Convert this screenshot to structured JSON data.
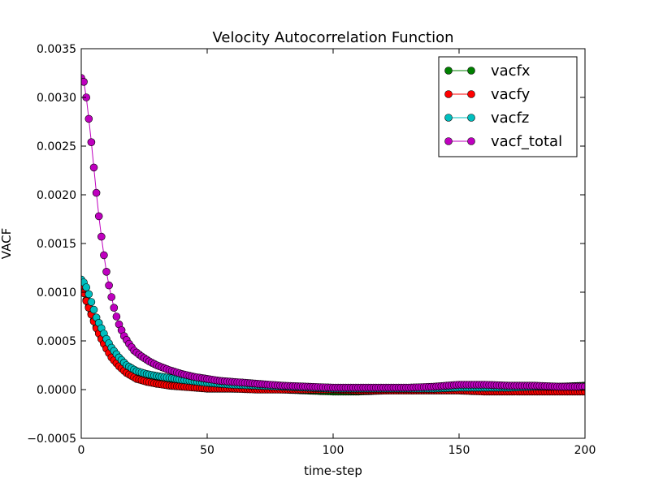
{
  "chart_data": {
    "type": "line",
    "title": "Velocity Autocorrelation Function",
    "xlabel": "time-step",
    "ylabel": "VACF",
    "xlim": [
      0,
      200
    ],
    "ylim": [
      -0.0005,
      0.0035
    ],
    "x_ticks": [
      "0",
      "50",
      "100",
      "150",
      "200"
    ],
    "y_ticks": [
      "−0.0005",
      "0.0000",
      "0.0005",
      "0.0010",
      "0.0015",
      "0.0020",
      "0.0025",
      "0.0030",
      "0.0035"
    ],
    "grid": false,
    "legend_position": "top-right",
    "marker": "circle",
    "series": [
      {
        "name": "vacfx",
        "color": "#008000",
        "points": [
          [
            0,
            0.00108
          ],
          [
            1,
            0.001
          ],
          [
            2,
            0.00092
          ],
          [
            3,
            0.00085
          ],
          [
            4,
            0.00078
          ],
          [
            5,
            0.00071
          ],
          [
            6,
            0.00064
          ],
          [
            8,
            0.00053
          ],
          [
            10,
            0.00043
          ],
          [
            12,
            0.00035
          ],
          [
            15,
            0.00026
          ],
          [
            18,
            0.00019
          ],
          [
            22,
            0.00013
          ],
          [
            26,
            9e-05
          ],
          [
            30,
            7e-05
          ],
          [
            35,
            5e-05
          ],
          [
            40,
            4e-05
          ],
          [
            50,
            2e-05
          ],
          [
            60,
            1e-05
          ],
          [
            70,
            1e-05
          ],
          [
            80,
            0.0
          ],
          [
            90,
            -1e-05
          ],
          [
            100,
            -2e-05
          ],
          [
            110,
            -2e-05
          ],
          [
            120,
            -1e-05
          ],
          [
            130,
            0.0
          ],
          [
            140,
            0.0
          ],
          [
            150,
            1e-05
          ],
          [
            160,
            1e-05
          ],
          [
            170,
            2e-05
          ],
          [
            180,
            2e-05
          ],
          [
            190,
            3e-05
          ],
          [
            200,
            4e-05
          ]
        ]
      },
      {
        "name": "vacfy",
        "color": "#ff0000",
        "points": [
          [
            0,
            0.00107
          ],
          [
            1,
            0.00099
          ],
          [
            2,
            0.00091
          ],
          [
            3,
            0.00084
          ],
          [
            4,
            0.00077
          ],
          [
            5,
            0.0007
          ],
          [
            6,
            0.00063
          ],
          [
            8,
            0.00052
          ],
          [
            10,
            0.00042
          ],
          [
            12,
            0.00033
          ],
          [
            15,
            0.00024
          ],
          [
            18,
            0.00017
          ],
          [
            22,
            0.00011
          ],
          [
            26,
            8e-05
          ],
          [
            30,
            6e-05
          ],
          [
            35,
            4e-05
          ],
          [
            40,
            3e-05
          ],
          [
            50,
            1e-05
          ],
          [
            60,
            1e-05
          ],
          [
            70,
            0.0
          ],
          [
            80,
            0.0
          ],
          [
            90,
            0.0
          ],
          [
            100,
            0.0
          ],
          [
            110,
            -1e-05
          ],
          [
            120,
            -1e-05
          ],
          [
            130,
            -1e-05
          ],
          [
            140,
            -1e-05
          ],
          [
            150,
            -1e-05
          ],
          [
            160,
            -2e-05
          ],
          [
            170,
            -2e-05
          ],
          [
            180,
            -2e-05
          ],
          [
            190,
            -2e-05
          ],
          [
            200,
            -2e-05
          ]
        ]
      },
      {
        "name": "vacfz",
        "color": "#00bfbf",
        "points": [
          [
            0,
            0.00113
          ],
          [
            1,
            0.0011
          ],
          [
            2,
            0.00105
          ],
          [
            3,
            0.00098
          ],
          [
            4,
            0.0009
          ],
          [
            5,
            0.00082
          ],
          [
            6,
            0.00074
          ],
          [
            8,
            0.00063
          ],
          [
            10,
            0.00052
          ],
          [
            12,
            0.00043
          ],
          [
            15,
            0.00033
          ],
          [
            18,
            0.00025
          ],
          [
            22,
            0.00019
          ],
          [
            26,
            0.00016
          ],
          [
            30,
            0.00014
          ],
          [
            35,
            0.00012
          ],
          [
            40,
            0.0001
          ],
          [
            50,
            7e-05
          ],
          [
            60,
            5e-05
          ],
          [
            70,
            4e-05
          ],
          [
            80,
            3e-05
          ],
          [
            90,
            2e-05
          ],
          [
            100,
            1e-05
          ],
          [
            110,
            1e-05
          ],
          [
            120,
            1e-05
          ],
          [
            130,
            1e-05
          ],
          [
            140,
            1e-05
          ],
          [
            150,
            2e-05
          ],
          [
            160,
            2e-05
          ],
          [
            170,
            2e-05
          ],
          [
            180,
            3e-05
          ],
          [
            190,
            3e-05
          ],
          [
            200,
            3e-05
          ]
        ]
      },
      {
        "name": "vacf_total",
        "color": "#bf00bf",
        "points": [
          [
            0,
            0.0032
          ],
          [
            1,
            0.00316
          ],
          [
            2,
            0.003
          ],
          [
            3,
            0.00278
          ],
          [
            4,
            0.00254
          ],
          [
            5,
            0.00228
          ],
          [
            6,
            0.00202
          ],
          [
            7,
            0.00178
          ],
          [
            8,
            0.00157
          ],
          [
            9,
            0.00138
          ],
          [
            10,
            0.00121
          ],
          [
            11,
            0.00107
          ],
          [
            12,
            0.00095
          ],
          [
            13,
            0.00084
          ],
          [
            14,
            0.00075
          ],
          [
            15,
            0.00067
          ],
          [
            17,
            0.00055
          ],
          [
            19,
            0.00047
          ],
          [
            21,
            0.0004
          ],
          [
            24,
            0.00034
          ],
          [
            27,
            0.00029
          ],
          [
            30,
            0.00025
          ],
          [
            35,
            0.0002
          ],
          [
            40,
            0.00016
          ],
          [
            45,
            0.00013
          ],
          [
            50,
            0.00011
          ],
          [
            55,
            9e-05
          ],
          [
            60,
            8e-05
          ],
          [
            70,
            6e-05
          ],
          [
            80,
            4e-05
          ],
          [
            90,
            3e-05
          ],
          [
            100,
            2e-05
          ],
          [
            110,
            2e-05
          ],
          [
            120,
            2e-05
          ],
          [
            130,
            2e-05
          ],
          [
            140,
            3e-05
          ],
          [
            150,
            5e-05
          ],
          [
            160,
            5e-05
          ],
          [
            170,
            4e-05
          ],
          [
            180,
            4e-05
          ],
          [
            190,
            3e-05
          ],
          [
            200,
            3e-05
          ]
        ]
      }
    ]
  }
}
